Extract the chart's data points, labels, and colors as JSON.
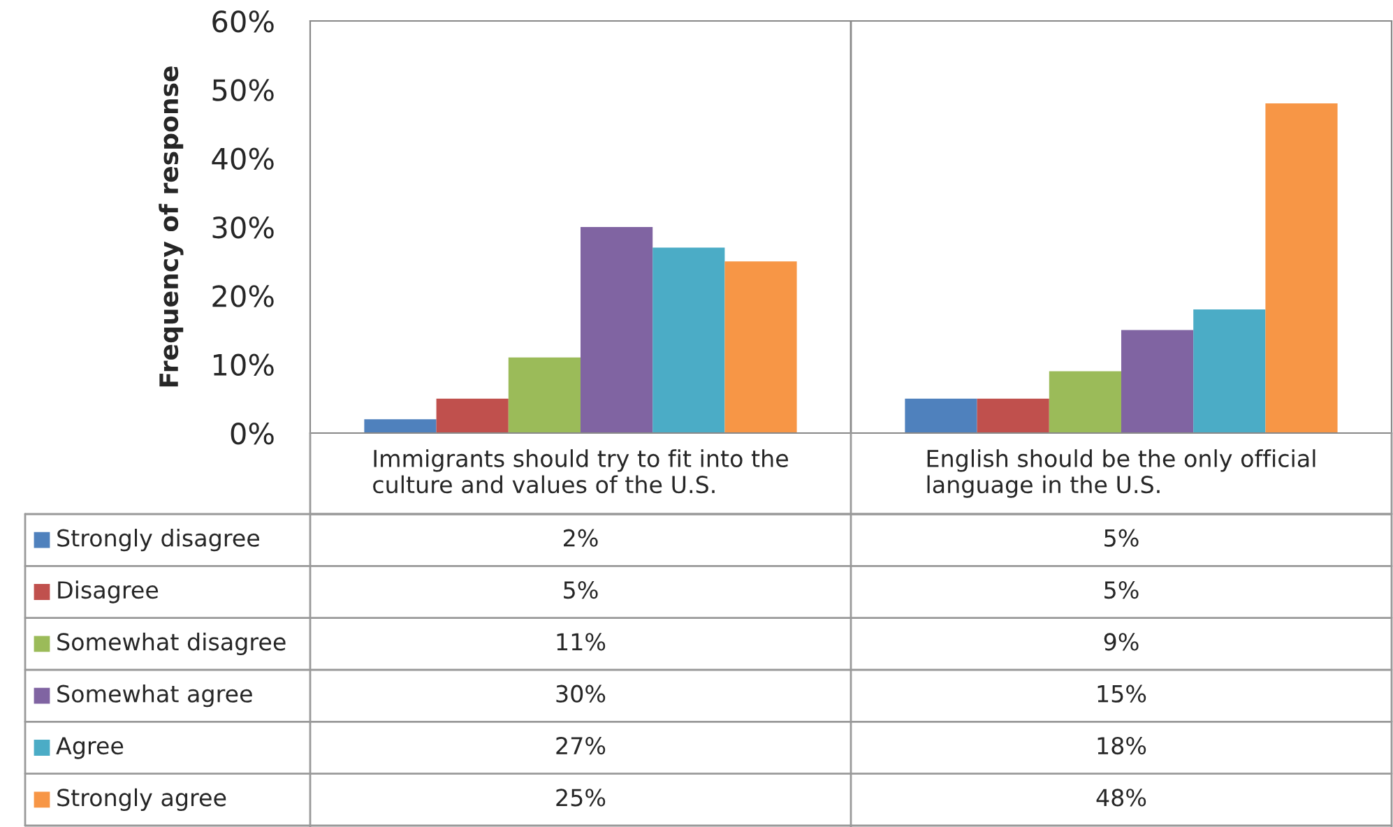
{
  "chart_data": {
    "type": "bar",
    "ylabel": "Frequency of response",
    "categories": [
      "Immigrants should try to fit into the culture and values of the U.S.",
      "English should be the only official language in the U.S."
    ],
    "series": [
      {
        "name": "Strongly disagree",
        "color": "#4f81bd",
        "values": [
          2,
          5
        ],
        "value_labels": [
          "2%",
          "5%"
        ]
      },
      {
        "name": "Disagree",
        "color": "#c0504d",
        "values": [
          5,
          5
        ],
        "value_labels": [
          "5%",
          "5%"
        ]
      },
      {
        "name": "Somewhat disagree",
        "color": "#9bbb59",
        "values": [
          11,
          9
        ],
        "value_labels": [
          "11%",
          "9%"
        ]
      },
      {
        "name": "Somewhat agree",
        "color": "#8064a2",
        "values": [
          30,
          15
        ],
        "value_labels": [
          "30%",
          "15%"
        ]
      },
      {
        "name": "Agree",
        "color": "#4bacc6",
        "values": [
          27,
          18
        ],
        "value_labels": [
          "27%",
          "18%"
        ]
      },
      {
        "name": "Strongly agree",
        "color": "#f79646",
        "values": [
          25,
          48
        ],
        "value_labels": [
          "25%",
          "48%"
        ]
      }
    ],
    "ylim": [
      0,
      60
    ],
    "yticks": [
      {
        "value": 0,
        "label": "0%"
      },
      {
        "value": 10,
        "label": "10%"
      },
      {
        "value": 20,
        "label": "20%"
      },
      {
        "value": 30,
        "label": "30%"
      },
      {
        "value": 40,
        "label": "40%"
      },
      {
        "value": 50,
        "label": "50%"
      },
      {
        "value": 60,
        "label": "60%"
      }
    ],
    "grid": false,
    "legend": "bottom"
  }
}
